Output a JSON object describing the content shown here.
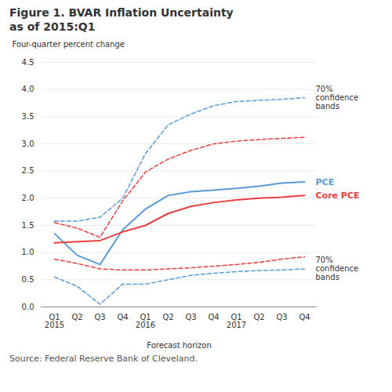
{
  "chart_data": {
    "type": "line",
    "title": "Figure 1. BVAR Inflation Uncertainty\nas of 2015:Q1",
    "ylabel": "Four-quarter percent change",
    "xlabel": "Forecast horizon",
    "source": "Source: Federal Reserve Bank of Cleveland.",
    "categories": [
      "Q1\n2015",
      "Q2",
      "Q3",
      "Q4",
      "Q1\n2016",
      "Q2",
      "Q3",
      "Q4",
      "Q1\n2017",
      "Q2",
      "Q3",
      "Q4"
    ],
    "series": [
      {
        "color": "#5b9bd5",
        "line_style": "solid",
        "values": [
          1.35,
          0.95,
          0.78,
          1.42,
          1.8,
          2.05,
          2.12,
          2.15,
          2.18,
          2.22,
          2.28,
          2.3
        ]
      },
      {
        "color": "#5b9bd5",
        "line_style": "dashed",
        "values": [
          1.58,
          1.58,
          1.65,
          2.0,
          2.82,
          3.35,
          3.55,
          3.7,
          3.78,
          3.8,
          3.82,
          3.85
        ]
      },
      {
        "color": "#5b9bd5",
        "line_style": "dashed",
        "values": [
          0.55,
          0.38,
          0.05,
          0.42,
          0.42,
          0.5,
          0.58,
          0.62,
          0.65,
          0.67,
          0.68,
          0.7
        ]
      },
      {
        "color": "#e84040",
        "line_style": "solid",
        "values": [
          1.18,
          1.2,
          1.22,
          1.38,
          1.5,
          1.72,
          1.85,
          1.92,
          1.97,
          2.0,
          2.02,
          2.05
        ]
      },
      {
        "color": "#e84040",
        "line_style": "dashed",
        "values": [
          1.55,
          1.45,
          1.28,
          1.95,
          2.48,
          2.72,
          2.88,
          3.0,
          3.05,
          3.08,
          3.1,
          3.12
        ]
      },
      {
        "color": "#e84040",
        "line_style": "dashed",
        "values": [
          0.88,
          0.8,
          0.7,
          0.68,
          0.68,
          0.7,
          0.72,
          0.75,
          0.78,
          0.82,
          0.88,
          0.92
        ]
      }
    ],
    "ylim": [
      0.0,
      4.5
    ],
    "yticks": [
      {
        "value": 0,
        "label": "0.0"
      },
      0.5,
      {
        "value": 1,
        "label": "1.0"
      },
      1.5,
      {
        "value": 2,
        "label": "2.0"
      },
      2.5,
      {
        "value": 3,
        "label": "3.0"
      },
      3.5,
      {
        "value": 4,
        "label": "4.0"
      },
      4.5
    ],
    "grid": true,
    "annotations": [
      {
        "text": "70%\nconfidence\nbands",
        "y": 3.85
      },
      {
        "text": "70%\nconfidence\nbands",
        "y": 0.7
      },
      {
        "text": "PCE",
        "y": 2.3,
        "color": "#5b9bd5"
      },
      {
        "text": "Core PCE",
        "y": 2.05,
        "color": "#e84040"
      }
    ]
  }
}
